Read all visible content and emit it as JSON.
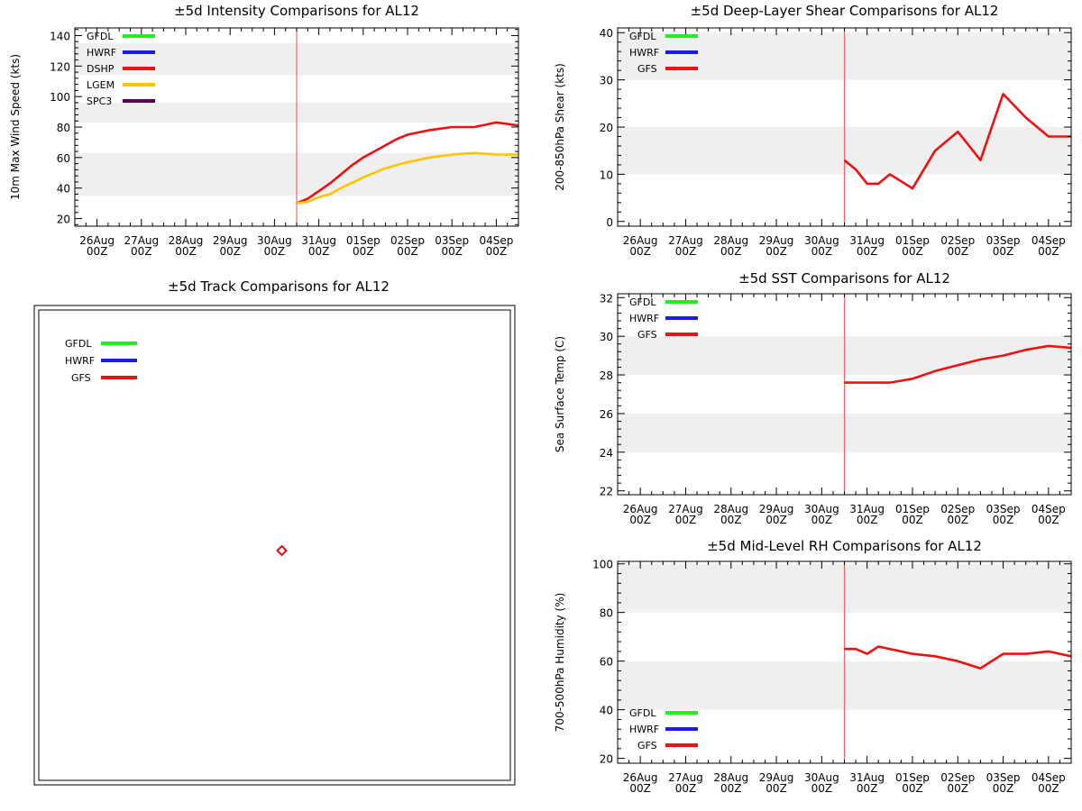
{
  "colors": {
    "GFDL": "#22ee22",
    "HWRF": "#1a1aee",
    "DSHP": "#ee1111",
    "LGEM": "#ffc400",
    "SPC3": "#5a0050",
    "GFS": "#ee1111",
    "band": "#efefef",
    "marker": "#e01010",
    "current": "#ee6666"
  },
  "date_ticks": {
    "labels": [
      "26Aug",
      "27Aug",
      "28Aug",
      "29Aug",
      "30Aug",
      "31Aug",
      "01Sep",
      "02Sep",
      "03Sep",
      "04Sep"
    ],
    "hour_label": "00Z",
    "current_day": 4.5,
    "day_range": [
      -0.5,
      9.5
    ]
  },
  "chart_data": [
    {
      "id": "intensity",
      "type": "line",
      "title": "±5d Intensity Comparisons for AL12",
      "ylabel": "10m Max Wind Speed (kts)",
      "ylim": [
        15,
        145
      ],
      "yticks": [
        20,
        40,
        60,
        80,
        100,
        120,
        140
      ],
      "bands": [
        [
          35,
          63
        ],
        [
          83,
          96
        ],
        [
          114,
          135
        ]
      ],
      "legend": [
        "GFDL",
        "HWRF",
        "DSHP",
        "LGEM",
        "SPC3"
      ],
      "series": [
        {
          "name": "DSHP",
          "x": [
            4.5,
            4.75,
            5.0,
            5.25,
            5.5,
            5.75,
            6.0,
            6.25,
            6.5,
            6.75,
            7.0,
            7.25,
            7.5,
            7.75,
            8.0,
            8.25,
            8.5,
            8.75,
            9.0,
            9.25,
            9.5
          ],
          "values": [
            30,
            33,
            38,
            43,
            49,
            55,
            60,
            64,
            68,
            72,
            75,
            76.5,
            78,
            79,
            80,
            80,
            80,
            81.5,
            83,
            82,
            81
          ]
        },
        {
          "name": "LGEM",
          "x": [
            4.5,
            4.75,
            5.0,
            5.25,
            5.5,
            5.75,
            6.0,
            6.25,
            6.5,
            6.75,
            7.0,
            7.25,
            7.5,
            7.75,
            8.0,
            8.25,
            8.5,
            8.75,
            9.0,
            9.25,
            9.5
          ],
          "values": [
            30,
            31,
            34,
            36,
            40,
            43.5,
            47,
            50,
            53,
            55,
            57,
            58.5,
            60,
            61,
            62,
            62.5,
            63,
            62.5,
            62,
            62,
            62
          ]
        }
      ]
    },
    {
      "id": "shear",
      "type": "line",
      "title": "±5d Deep-Layer Shear Comparisons for AL12",
      "ylabel": "200-850hPa Shear (kts)",
      "ylim": [
        -1,
        41
      ],
      "yticks": [
        0,
        10,
        20,
        30,
        40
      ],
      "bands": [
        [
          10,
          20
        ],
        [
          30,
          40
        ]
      ],
      "legend": [
        "GFDL",
        "HWRF",
        "GFS"
      ],
      "series": [
        {
          "name": "GFS",
          "x": [
            4.5,
            4.75,
            5.0,
            5.25,
            5.5,
            5.75,
            6.0,
            6.5,
            7.0,
            7.5,
            8.0,
            8.5,
            9.0,
            9.5
          ],
          "values": [
            13,
            11,
            8,
            8,
            10,
            8.5,
            7,
            15,
            19,
            13,
            27,
            22,
            18,
            18
          ]
        }
      ]
    },
    {
      "id": "sst",
      "type": "line",
      "title": "±5d SST Comparisons for AL12",
      "ylabel": "Sea Surface Temp (C)",
      "ylim": [
        21.8,
        32.2
      ],
      "yticks": [
        22,
        24,
        26,
        28,
        30,
        32
      ],
      "bands": [
        [
          24,
          26
        ],
        [
          28,
          30
        ]
      ],
      "legend": [
        "GFDL",
        "HWRF",
        "GFS"
      ],
      "series": [
        {
          "name": "GFS",
          "x": [
            4.5,
            4.75,
            5.0,
            5.25,
            5.5,
            5.75,
            6.0,
            6.5,
            7.0,
            7.5,
            8.0,
            8.5,
            9.0,
            9.5
          ],
          "values": [
            27.6,
            27.6,
            27.6,
            27.6,
            27.6,
            27.7,
            27.8,
            28.2,
            28.5,
            28.8,
            29.0,
            29.3,
            29.5,
            29.4
          ]
        }
      ]
    },
    {
      "id": "rh",
      "type": "line",
      "title": "±5d Mid-Level RH Comparisons for AL12",
      "ylabel": "700-500hPa Humidity (%)",
      "ylim": [
        18,
        101
      ],
      "yticks": [
        20,
        40,
        60,
        80,
        100
      ],
      "bands": [
        [
          40,
          60
        ],
        [
          80,
          100
        ]
      ],
      "legend": [
        "GFDL",
        "HWRF",
        "GFS"
      ],
      "series": [
        {
          "name": "GFS",
          "x": [
            4.5,
            4.75,
            5.0,
            5.25,
            5.5,
            5.75,
            6.0,
            6.5,
            7.0,
            7.5,
            8.0,
            8.5,
            9.0,
            9.5
          ],
          "values": [
            65,
            65,
            63,
            66,
            65,
            64,
            63,
            62,
            60,
            57,
            63,
            63,
            64,
            62
          ]
        }
      ]
    },
    {
      "id": "track",
      "type": "scatter",
      "title": "±5d Track Comparisons for AL12",
      "legend": [
        "GFDL",
        "HWRF",
        "GFS"
      ],
      "points": [
        {
          "name": "current-position",
          "x": 0.5,
          "y": 0.5
        }
      ]
    }
  ]
}
